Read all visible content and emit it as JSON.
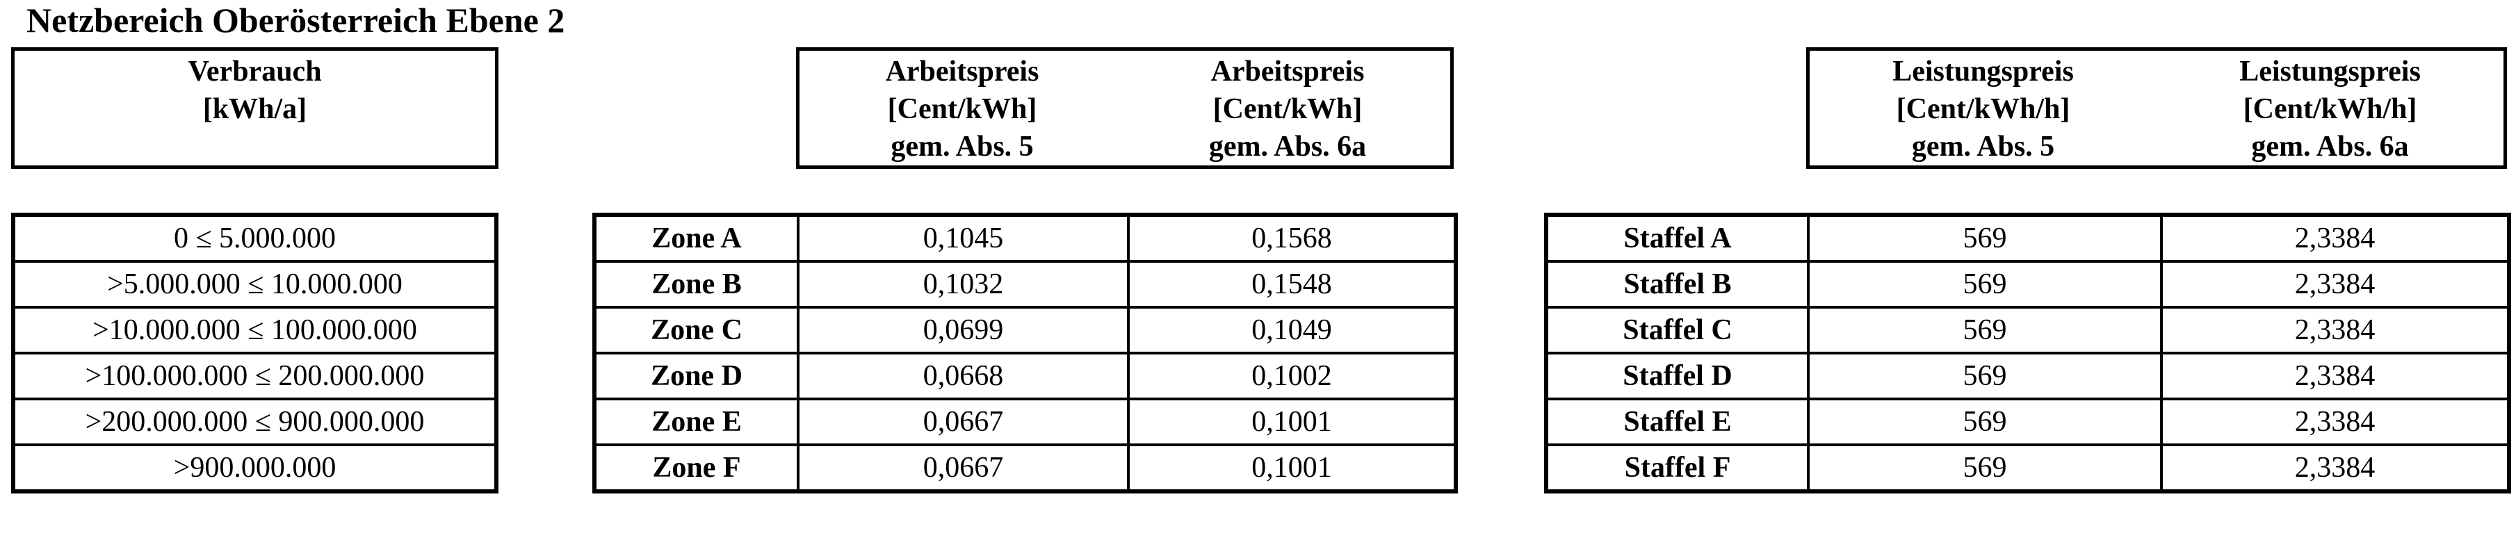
{
  "title": "Netzbereich Oberösterreich Ebene 2",
  "colors": {
    "background": "#ffffff",
    "text": "#000000",
    "border": "#000000"
  },
  "verbrauch_table": {
    "header": {
      "line1": "Verbrauch",
      "line2": "[kWh/a]"
    },
    "rows": [
      "0 ≤ 5.000.000",
      ">5.000.000 ≤ 10.000.000",
      ">10.000.000 ≤ 100.000.000",
      ">100.000.000 ≤ 200.000.000",
      ">200.000.000 ≤ 900.000.000",
      ">900.000.000"
    ]
  },
  "arbeitspreis_table": {
    "headers": [
      {
        "line1": "Arbeitspreis",
        "line2": "[Cent/kWh]",
        "line3": "gem. Abs. 5"
      },
      {
        "line1": "Arbeitspreis",
        "line2": "[Cent/kWh]",
        "line3": "gem. Abs. 6a"
      }
    ],
    "rows": [
      {
        "label": "Zone A",
        "abs5": "0,1045",
        "abs6a": "0,1568"
      },
      {
        "label": "Zone B",
        "abs5": "0,1032",
        "abs6a": "0,1548"
      },
      {
        "label": "Zone C",
        "abs5": "0,0699",
        "abs6a": "0,1049"
      },
      {
        "label": "Zone D",
        "abs5": "0,0668",
        "abs6a": "0,1002"
      },
      {
        "label": "Zone E",
        "abs5": "0,0667",
        "abs6a": "0,1001"
      },
      {
        "label": "Zone F",
        "abs5": "0,0667",
        "abs6a": "0,1001"
      }
    ]
  },
  "leistungspreis_table": {
    "headers": [
      {
        "line1": "Leistungspreis",
        "line2": "[Cent/kWh/h]",
        "line3": "gem. Abs. 5"
      },
      {
        "line1": "Leistungspreis",
        "line2": "[Cent/kWh/h]",
        "line3": "gem. Abs. 6a"
      }
    ],
    "rows": [
      {
        "label": "Staffel A",
        "abs5": "569",
        "abs6a": "2,3384"
      },
      {
        "label": "Staffel B",
        "abs5": "569",
        "abs6a": "2,3384"
      },
      {
        "label": "Staffel C",
        "abs5": "569",
        "abs6a": "2,3384"
      },
      {
        "label": "Staffel D",
        "abs5": "569",
        "abs6a": "2,3384"
      },
      {
        "label": "Staffel E",
        "abs5": "569",
        "abs6a": "2,3384"
      },
      {
        "label": "Staffel F",
        "abs5": "569",
        "abs6a": "2,3384"
      }
    ]
  }
}
